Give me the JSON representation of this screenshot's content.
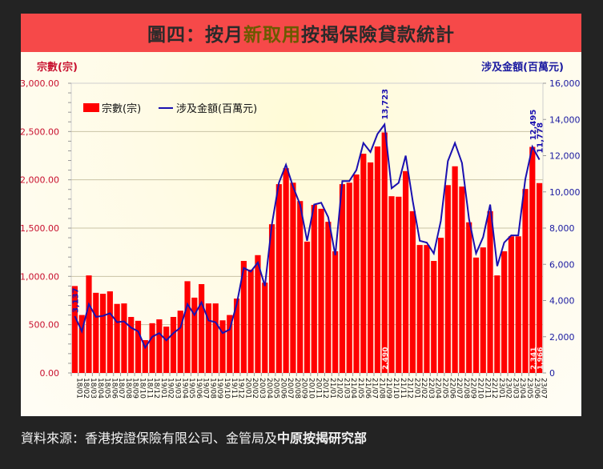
{
  "title": {
    "prefix": "圖四：按月",
    "highlight": "新取用",
    "suffix": "按揭保險貸款統計"
  },
  "axes": {
    "left_label": "宗數(宗)",
    "right_label": "涉及金額(百萬元)",
    "left_ticks": [
      "0.00",
      "500.00",
      "1,000.00",
      "1,500.00",
      "2,000.00",
      "2,500.00",
      "3,000.00"
    ],
    "right_ticks": [
      "0",
      "2,000",
      "4,000",
      "6,000",
      "8,000",
      "10,000",
      "12,000",
      "14,000",
      "16,000"
    ]
  },
  "legend": {
    "bar_label": "宗數(宗)",
    "line_label": "涉及金額(百萬元)"
  },
  "annotations": {
    "first_line": "3,137",
    "peak_line": "13,723",
    "peak_bar": "2,490",
    "jun23_line": "12,495",
    "jul23_line": "11,778",
    "jun23_bar": "2,341",
    "jul23_bar": "1,966"
  },
  "source": {
    "normal": "資料來源：香港按證保險有限公司、金管局及",
    "bold": "中原按揭研究部"
  },
  "colors": {
    "bar": "#ff0000",
    "line": "#1a10b0",
    "left_axis": "#c8102e",
    "right_axis": "#1a1aa0",
    "title_bg": "#f64949"
  },
  "chart_data": {
    "type": "bar",
    "title": "圖四：按月新取用按揭保險貸款統計",
    "xlabel": "",
    "ylabel": "宗數(宗)",
    "y2label": "涉及金額(百萬元)",
    "ylim": [
      0,
      3000
    ],
    "y2lim": [
      0,
      16000
    ],
    "grid": true,
    "legend_position": "top-left",
    "categories": [
      "18/01",
      "18/02",
      "18/03",
      "18/04",
      "18/05",
      "18/06",
      "18/07",
      "18/08",
      "18/09",
      "18/10",
      "18/11",
      "18/12",
      "19/01",
      "19/02",
      "19/03",
      "19/04",
      "19/05",
      "19/06",
      "19/07",
      "19/08",
      "19/09",
      "19/10",
      "19/11",
      "19/12",
      "20/01",
      "20/02",
      "20/03",
      "20/04",
      "20/05",
      "20/06",
      "20/07",
      "20/08",
      "20/09",
      "20/10",
      "20/11",
      "20/12",
      "21/01",
      "21/02",
      "21/03",
      "21/04",
      "21/05",
      "21/06",
      "21/07",
      "21/08",
      "21/09",
      "21/10",
      "21/11",
      "21/12",
      "22/01",
      "22/02",
      "22/03",
      "22/04",
      "22/05",
      "22/06",
      "22/07",
      "22/08",
      "22/09",
      "22/10",
      "22/11",
      "22/12",
      "23/01",
      "23/02",
      "23/03",
      "23/04",
      "23/05",
      "23/06",
      "23/07"
    ],
    "series": [
      {
        "name": "宗數(宗)",
        "type": "bar",
        "axis": "left",
        "values": [
          900,
          600,
          1010,
          830,
          820,
          845,
          715,
          720,
          580,
          540,
          340,
          515,
          555,
          480,
          580,
          645,
          950,
          780,
          920,
          720,
          720,
          545,
          600,
          770,
          1160,
          1070,
          1220,
          935,
          1540,
          1955,
          2120,
          1970,
          1780,
          1360,
          1740,
          1700,
          1565,
          1260,
          1955,
          1970,
          2055,
          2270,
          2180,
          2345,
          2490,
          1830,
          1825,
          2090,
          1675,
          1325,
          1325,
          1160,
          1400,
          1945,
          2140,
          1930,
          1560,
          1195,
          1300,
          1675,
          1010,
          1260,
          1415,
          1415,
          1905,
          2341,
          1966
        ]
      },
      {
        "name": "涉及金額(百萬元)",
        "type": "line",
        "axis": "right",
        "values": [
          3137,
          2300,
          3800,
          3100,
          3150,
          3300,
          2800,
          2850,
          2500,
          2300,
          1400,
          2000,
          2200,
          1800,
          2200,
          2500,
          3800,
          3200,
          3900,
          2900,
          2800,
          2200,
          2400,
          3800,
          5800,
          5600,
          6100,
          4800,
          8200,
          10500,
          11500,
          10300,
          9300,
          7300,
          9300,
          9400,
          8600,
          6500,
          10600,
          10600,
          11200,
          12700,
          12200,
          13200,
          13723,
          10200,
          10500,
          12000,
          9500,
          7300,
          7200,
          6600,
          8400,
          11700,
          12700,
          11600,
          8500,
          6600,
          7500,
          9300,
          5900,
          7200,
          7600,
          7600,
          10700,
          12495,
          11778
        ]
      }
    ]
  }
}
